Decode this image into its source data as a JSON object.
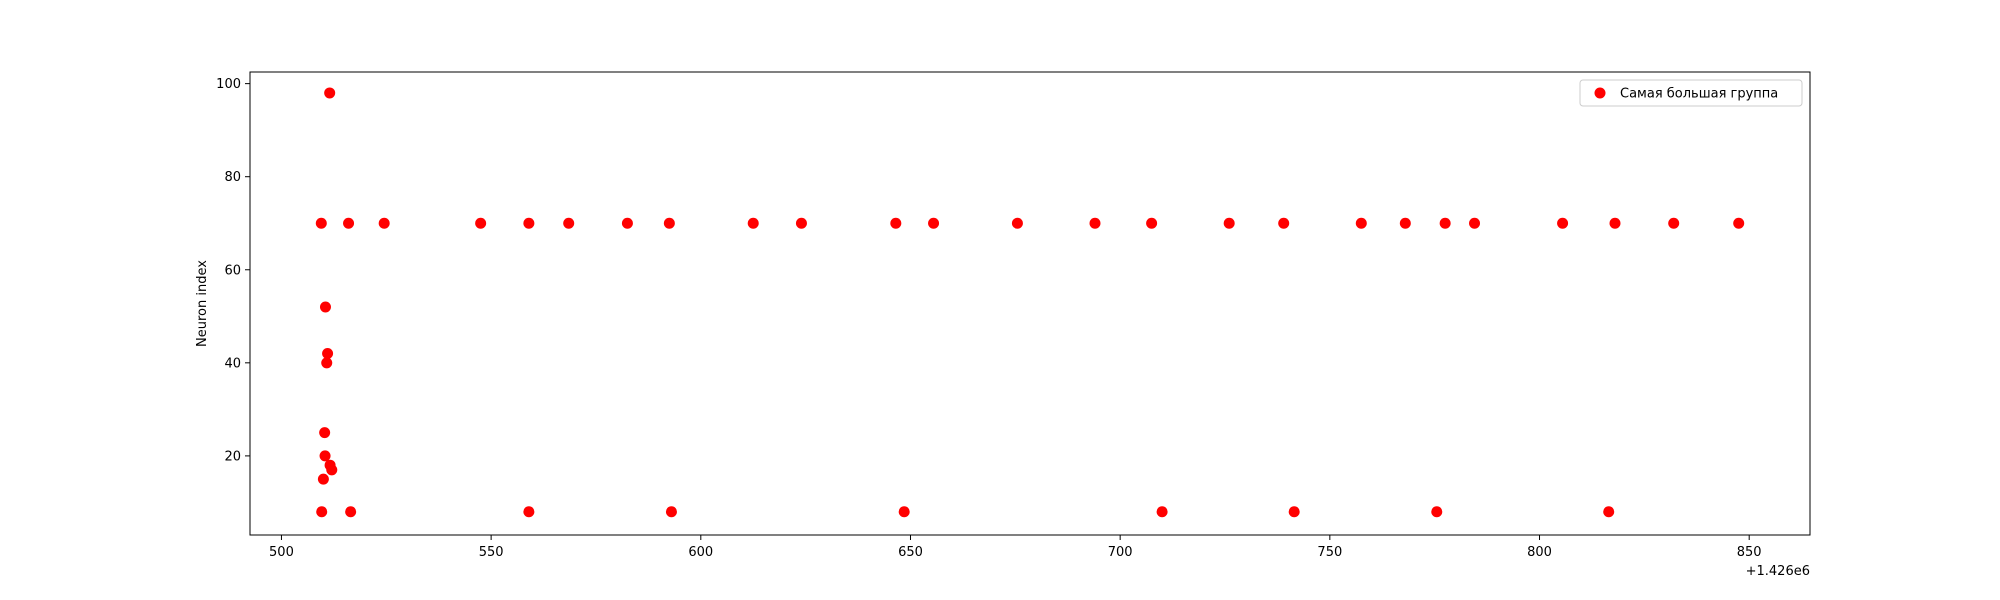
{
  "chart_data": {
    "type": "scatter",
    "title": "",
    "xlabel": "",
    "ylabel": "Neuron index",
    "x_offset_label": "+1.426e6",
    "xlim": [
      1426492.5,
      1426864.5
    ],
    "ylim": [
      3,
      102.5
    ],
    "x_ticks": [
      500,
      550,
      600,
      650,
      700,
      750,
      800,
      850
    ],
    "y_ticks": [
      20,
      40,
      60,
      80,
      100
    ],
    "grid": false,
    "legend_position": "top-right",
    "series": [
      {
        "name": "Самая большая группа",
        "color": "#ff0000",
        "x": [
          509.5,
          511.5,
          516,
          524.5,
          547.5,
          559,
          568.5,
          582.5,
          592.5,
          612.5,
          624,
          646.5,
          655.5,
          675.5,
          694,
          707.5,
          726,
          739,
          757.5,
          768,
          777.5,
          784.5,
          805.5,
          818,
          832,
          847.5,
          510.5,
          511,
          510.8,
          510.3,
          510.4,
          511.6,
          512,
          510,
          509.6,
          516.5,
          559,
          593,
          648.5,
          710,
          741.5,
          775.5,
          816.5
        ],
        "y": [
          70,
          98,
          70,
          70,
          70,
          70,
          70,
          70,
          70,
          70,
          70,
          70,
          70,
          70,
          70,
          70,
          70,
          70,
          70,
          70,
          70,
          70,
          70,
          70,
          70,
          70,
          52,
          42,
          40,
          25,
          20,
          18,
          17,
          15,
          8,
          8,
          8,
          8,
          8,
          8,
          8,
          8,
          8
        ]
      }
    ]
  }
}
